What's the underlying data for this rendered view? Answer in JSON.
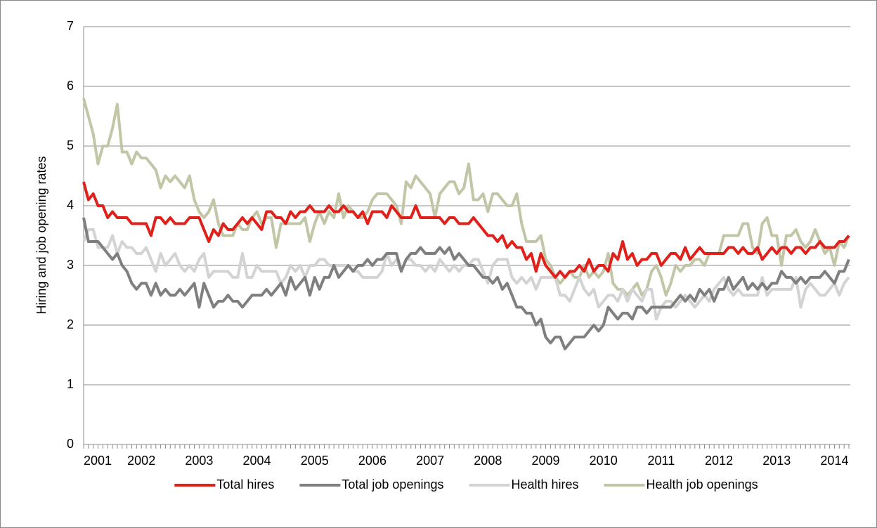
{
  "chart_data": {
    "type": "line",
    "y_axis_label": "Hiring and job opening rates",
    "categories": [
      "2001",
      null,
      null,
      null,
      null,
      null,
      null,
      null,
      null,
      null,
      null,
      null,
      "2002",
      null,
      null,
      null,
      null,
      null,
      null,
      null,
      null,
      null,
      null,
      null,
      "2003",
      null,
      null,
      null,
      null,
      null,
      null,
      null,
      null,
      null,
      null,
      null,
      "2004",
      null,
      null,
      null,
      null,
      null,
      null,
      null,
      null,
      null,
      null,
      null,
      "2005",
      null,
      null,
      null,
      null,
      null,
      null,
      null,
      null,
      null,
      null,
      null,
      "2006",
      null,
      null,
      null,
      null,
      null,
      null,
      null,
      null,
      null,
      null,
      null,
      "2007",
      null,
      null,
      null,
      null,
      null,
      null,
      null,
      null,
      null,
      null,
      null,
      "2008",
      null,
      null,
      null,
      null,
      null,
      null,
      null,
      null,
      null,
      null,
      null,
      "2009",
      null,
      null,
      null,
      null,
      null,
      null,
      null,
      null,
      null,
      null,
      null,
      "2010",
      null,
      null,
      null,
      null,
      null,
      null,
      null,
      null,
      null,
      null,
      null,
      "2011",
      null,
      null,
      null,
      null,
      null,
      null,
      null,
      null,
      null,
      null,
      null,
      "2012",
      null,
      null,
      null,
      null,
      null,
      null,
      null,
      null,
      null,
      null,
      null,
      "2013",
      null,
      null,
      null,
      null,
      null,
      null,
      null,
      null,
      null,
      null,
      null,
      "2014",
      null,
      null,
      null
    ],
    "series": [
      {
        "name": "Total hires",
        "color": "#e0201b",
        "values": [
          4.4,
          4.1,
          4.2,
          4.0,
          4.0,
          3.8,
          3.9,
          3.8,
          3.8,
          3.8,
          3.7,
          3.7,
          3.7,
          3.7,
          3.5,
          3.8,
          3.8,
          3.7,
          3.8,
          3.7,
          3.7,
          3.7,
          3.8,
          3.8,
          3.8,
          3.6,
          3.4,
          3.6,
          3.5,
          3.7,
          3.6,
          3.6,
          3.7,
          3.8,
          3.7,
          3.8,
          3.7,
          3.6,
          3.9,
          3.9,
          3.8,
          3.8,
          3.7,
          3.9,
          3.8,
          3.9,
          3.9,
          4.0,
          3.9,
          3.9,
          3.9,
          4.0,
          3.9,
          3.9,
          4.0,
          3.9,
          3.9,
          3.8,
          3.9,
          3.7,
          3.9,
          3.9,
          3.9,
          3.8,
          4.0,
          3.9,
          3.8,
          3.8,
          3.8,
          4.0,
          3.8,
          3.8,
          3.8,
          3.8,
          3.8,
          3.7,
          3.8,
          3.8,
          3.7,
          3.7,
          3.7,
          3.8,
          3.7,
          3.6,
          3.5,
          3.5,
          3.4,
          3.5,
          3.3,
          3.4,
          3.3,
          3.3,
          3.1,
          3.2,
          2.9,
          3.2,
          3.0,
          2.9,
          2.8,
          2.9,
          2.8,
          2.9,
          2.9,
          3.0,
          2.9,
          3.1,
          2.9,
          3.0,
          3.0,
          2.9,
          3.2,
          3.1,
          3.4,
          3.1,
          3.2,
          3.0,
          3.1,
          3.1,
          3.2,
          3.2,
          3.0,
          3.1,
          3.2,
          3.2,
          3.1,
          3.3,
          3.1,
          3.2,
          3.3,
          3.2,
          3.2,
          3.2,
          3.2,
          3.2,
          3.3,
          3.3,
          3.2,
          3.3,
          3.2,
          3.2,
          3.3,
          3.1,
          3.2,
          3.3,
          3.2,
          3.3,
          3.3,
          3.2,
          3.3,
          3.3,
          3.2,
          3.3,
          3.3,
          3.4,
          3.3,
          3.3,
          3.3,
          3.4,
          3.4,
          3.5
        ]
      },
      {
        "name": "Total job openings",
        "color": "#7f7f7f",
        "values": [
          3.8,
          3.4,
          3.4,
          3.4,
          3.3,
          3.2,
          3.1,
          3.2,
          3.0,
          2.9,
          2.7,
          2.6,
          2.7,
          2.7,
          2.5,
          2.7,
          2.5,
          2.6,
          2.5,
          2.5,
          2.6,
          2.5,
          2.6,
          2.7,
          2.3,
          2.7,
          2.5,
          2.3,
          2.4,
          2.4,
          2.5,
          2.4,
          2.4,
          2.3,
          2.4,
          2.5,
          2.5,
          2.5,
          2.6,
          2.5,
          2.6,
          2.7,
          2.5,
          2.8,
          2.6,
          2.7,
          2.8,
          2.5,
          2.8,
          2.6,
          2.8,
          2.8,
          3.0,
          2.8,
          2.9,
          3.0,
          2.9,
          3.0,
          3.0,
          3.1,
          3.0,
          3.1,
          3.1,
          3.2,
          3.2,
          3.2,
          2.9,
          3.1,
          3.2,
          3.2,
          3.3,
          3.2,
          3.2,
          3.2,
          3.3,
          3.2,
          3.3,
          3.1,
          3.2,
          3.1,
          3.0,
          3.0,
          2.9,
          2.8,
          2.8,
          2.7,
          2.8,
          2.6,
          2.7,
          2.5,
          2.3,
          2.3,
          2.2,
          2.2,
          2.0,
          2.1,
          1.8,
          1.7,
          1.8,
          1.8,
          1.6,
          1.7,
          1.8,
          1.8,
          1.8,
          1.9,
          2.0,
          1.9,
          2.0,
          2.3,
          2.2,
          2.1,
          2.2,
          2.2,
          2.1,
          2.3,
          2.3,
          2.2,
          2.3,
          2.3,
          2.3,
          2.3,
          2.3,
          2.4,
          2.5,
          2.4,
          2.5,
          2.4,
          2.6,
          2.5,
          2.6,
          2.4,
          2.6,
          2.6,
          2.8,
          2.6,
          2.7,
          2.8,
          2.6,
          2.7,
          2.6,
          2.7,
          2.6,
          2.7,
          2.7,
          2.9,
          2.8,
          2.8,
          2.7,
          2.8,
          2.7,
          2.8,
          2.8,
          2.8,
          2.9,
          2.8,
          2.7,
          2.9,
          2.9,
          3.1
        ]
      },
      {
        "name": "Health hires",
        "color": "#d3d3d3",
        "values": [
          3.4,
          3.6,
          3.6,
          3.3,
          3.3,
          3.3,
          3.5,
          3.2,
          3.4,
          3.3,
          3.3,
          3.2,
          3.2,
          3.3,
          3.1,
          2.9,
          3.2,
          3.0,
          3.1,
          3.2,
          3.0,
          2.9,
          3.0,
          2.9,
          3.1,
          3.2,
          2.8,
          2.9,
          2.9,
          2.9,
          2.9,
          2.8,
          2.8,
          3.2,
          2.8,
          2.8,
          3.0,
          2.9,
          2.9,
          2.9,
          2.9,
          2.7,
          2.8,
          3.0,
          2.9,
          3.0,
          2.8,
          3.0,
          3.0,
          3.1,
          3.1,
          3.0,
          3.0,
          3.0,
          3.0,
          3.0,
          2.9,
          2.9,
          2.8,
          2.8,
          2.8,
          2.8,
          2.9,
          3.2,
          3.0,
          3.1,
          2.9,
          3.1,
          3.1,
          3.0,
          3.0,
          2.9,
          3.0,
          2.9,
          3.1,
          3.0,
          2.9,
          3.0,
          2.9,
          3.0,
          3.0,
          3.1,
          3.1,
          2.9,
          2.7,
          3.0,
          3.1,
          3.1,
          3.1,
          2.8,
          2.7,
          2.8,
          2.7,
          2.8,
          2.6,
          2.8,
          2.8,
          2.8,
          2.8,
          2.5,
          2.5,
          2.4,
          2.6,
          2.8,
          2.6,
          2.5,
          2.6,
          2.3,
          2.4,
          2.5,
          2.5,
          2.4,
          2.6,
          2.4,
          2.6,
          2.5,
          2.4,
          2.6,
          2.6,
          2.1,
          2.3,
          2.4,
          2.4,
          2.3,
          2.4,
          2.5,
          2.4,
          2.3,
          2.4,
          2.5,
          2.4,
          2.6,
          2.7,
          2.8,
          2.6,
          2.5,
          2.6,
          2.5,
          2.5,
          2.5,
          2.5,
          2.8,
          2.5,
          2.6,
          2.6,
          2.6,
          2.6,
          2.6,
          2.8,
          2.3,
          2.6,
          2.7,
          2.6,
          2.5,
          2.5,
          2.6,
          2.7,
          2.5,
          2.7,
          2.8
        ]
      },
      {
        "name": "Health job openings",
        "color": "#c3c6a6",
        "values": [
          5.8,
          5.5,
          5.2,
          4.7,
          5.0,
          5.0,
          5.3,
          5.7,
          4.9,
          4.9,
          4.7,
          4.9,
          4.8,
          4.8,
          4.7,
          4.6,
          4.3,
          4.5,
          4.4,
          4.5,
          4.4,
          4.3,
          4.5,
          4.1,
          3.9,
          3.8,
          3.9,
          4.1,
          3.7,
          3.5,
          3.5,
          3.5,
          3.7,
          3.6,
          3.6,
          3.8,
          3.9,
          3.7,
          3.8,
          3.8,
          3.3,
          3.7,
          3.7,
          3.7,
          3.7,
          3.7,
          3.8,
          3.4,
          3.7,
          3.9,
          3.7,
          3.9,
          3.8,
          4.2,
          3.8,
          4.0,
          3.9,
          3.8,
          3.8,
          3.9,
          4.1,
          4.2,
          4.2,
          4.2,
          4.1,
          4.0,
          3.7,
          4.4,
          4.3,
          4.5,
          4.4,
          4.3,
          4.2,
          3.8,
          4.2,
          4.3,
          4.4,
          4.4,
          4.2,
          4.3,
          4.7,
          4.1,
          4.1,
          4.2,
          3.9,
          4.2,
          4.2,
          4.1,
          4.0,
          4.0,
          4.2,
          3.7,
          3.4,
          3.4,
          3.4,
          3.5,
          3.1,
          3.0,
          2.8,
          2.7,
          2.8,
          2.9,
          2.8,
          2.8,
          3.0,
          2.8,
          2.9,
          2.8,
          2.9,
          3.2,
          2.7,
          2.6,
          2.6,
          2.5,
          2.6,
          2.7,
          2.5,
          2.6,
          2.9,
          3.0,
          2.8,
          2.5,
          2.7,
          3.0,
          2.9,
          3.0,
          3.0,
          3.1,
          3.1,
          3.0,
          3.2,
          3.2,
          3.2,
          3.5,
          3.5,
          3.5,
          3.5,
          3.7,
          3.7,
          3.3,
          3.2,
          3.7,
          3.8,
          3.5,
          3.5,
          3.0,
          3.5,
          3.5,
          3.6,
          3.4,
          3.3,
          3.4,
          3.6,
          3.4,
          3.2,
          3.3,
          3.0,
          3.4,
          3.3,
          3.5
        ]
      }
    ],
    "ylim": [
      0,
      7
    ],
    "yticks": [
      0,
      1,
      2,
      3,
      4,
      5,
      6,
      7
    ],
    "grid": true,
    "legend": "bottom"
  }
}
